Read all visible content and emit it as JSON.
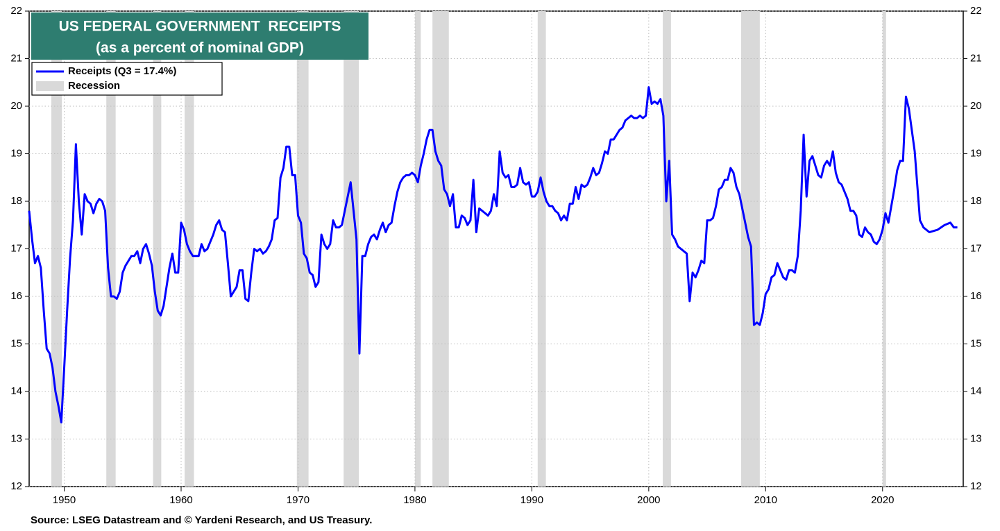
{
  "chart_data": {
    "type": "line",
    "title": "US FEDERAL GOVERNMENT  RECEIPTS",
    "subtitle": "(as a percent of nominal GDP)",
    "source": "Source: LSEG Datastream and © Yardeni Research, and US Treasury.",
    "xlim": [
      1947.0,
      2026.9
    ],
    "xticks": [
      1950,
      1960,
      1970,
      1980,
      1990,
      2000,
      2010,
      2020
    ],
    "ylim": [
      12,
      22
    ],
    "yticks": [
      12,
      13,
      14,
      15,
      16,
      17,
      18,
      19,
      20,
      21,
      22
    ],
    "y2lim": [
      12,
      22
    ],
    "y2ticks": [
      12,
      13,
      14,
      15,
      16,
      17,
      18,
      19,
      20,
      21,
      22
    ],
    "grid": true,
    "legend_position": "upper left",
    "recession_label": "Recession",
    "recession_color": "#d9d9d9",
    "recessions": [
      [
        1948.9,
        1949.8
      ],
      [
        1953.6,
        1954.4
      ],
      [
        1957.6,
        1958.3
      ],
      [
        1960.3,
        1961.1
      ],
      [
        1969.9,
        1970.9
      ],
      [
        1973.9,
        1975.2
      ],
      [
        1980.0,
        1980.5
      ],
      [
        1981.5,
        1982.9
      ],
      [
        1990.5,
        1991.2
      ],
      [
        2001.2,
        2001.9
      ],
      [
        2007.9,
        2009.5
      ],
      [
        2020.0,
        2020.3
      ]
    ],
    "x": [
      1947,
      1947.25,
      1947.5,
      1947.75,
      1948,
      1948.25,
      1948.5,
      1948.75,
      1949,
      1949.25,
      1949.5,
      1949.75,
      1950,
      1950.25,
      1950.5,
      1950.75,
      1951,
      1951.25,
      1951.5,
      1951.75,
      1952,
      1952.25,
      1952.5,
      1952.75,
      1953,
      1953.25,
      1953.5,
      1953.75,
      1954,
      1954.25,
      1954.5,
      1954.75,
      1955,
      1955.25,
      1955.5,
      1955.75,
      1956,
      1956.25,
      1956.5,
      1956.75,
      1957,
      1957.25,
      1957.5,
      1957.75,
      1958,
      1958.25,
      1958.5,
      1958.75,
      1959,
      1959.25,
      1959.5,
      1959.75,
      1960,
      1960.25,
      1960.5,
      1960.75,
      1961,
      1961.25,
      1961.5,
      1961.75,
      1962,
      1962.25,
      1962.5,
      1962.75,
      1963,
      1963.25,
      1963.5,
      1963.75,
      1964,
      1964.25,
      1964.5,
      1964.75,
      1965,
      1965.25,
      1965.5,
      1965.75,
      1966,
      1966.25,
      1966.5,
      1966.75,
      1967,
      1967.25,
      1967.5,
      1967.75,
      1968,
      1968.25,
      1968.5,
      1968.75,
      1969,
      1969.25,
      1969.5,
      1969.75,
      1970,
      1970.25,
      1970.5,
      1970.75,
      1971,
      1971.25,
      1971.5,
      1971.75,
      1972,
      1972.25,
      1972.5,
      1972.75,
      1973,
      1973.25,
      1973.5,
      1973.75,
      1974,
      1974.25,
      1974.5,
      1974.75,
      1975,
      1975.25,
      1975.5,
      1975.75,
      1976,
      1976.25,
      1976.5,
      1976.75,
      1977,
      1977.25,
      1977.5,
      1977.75,
      1978,
      1978.25,
      1978.5,
      1978.75,
      1979,
      1979.25,
      1979.5,
      1979.75,
      1980,
      1980.25,
      1980.5,
      1980.75,
      1981,
      1981.25,
      1981.5,
      1981.75,
      1982,
      1982.25,
      1982.5,
      1982.75,
      1983,
      1983.25,
      1983.5,
      1983.75,
      1984,
      1984.25,
      1984.5,
      1984.75,
      1985,
      1985.25,
      1985.5,
      1985.75,
      1986,
      1986.25,
      1986.5,
      1986.75,
      1987,
      1987.25,
      1987.5,
      1987.75,
      1988,
      1988.25,
      1988.5,
      1988.75,
      1989,
      1989.25,
      1989.5,
      1989.75,
      1990,
      1990.25,
      1990.5,
      1990.75,
      1991,
      1991.25,
      1991.5,
      1991.75,
      1992,
      1992.25,
      1992.5,
      1992.75,
      1993,
      1993.25,
      1993.5,
      1993.75,
      1994,
      1994.25,
      1994.5,
      1994.75,
      1995,
      1995.25,
      1995.5,
      1995.75,
      1996,
      1996.25,
      1996.5,
      1996.75,
      1997,
      1997.25,
      1997.5,
      1997.75,
      1998,
      1998.25,
      1998.5,
      1998.75,
      1999,
      1999.25,
      1999.5,
      1999.75,
      2000,
      2000.25,
      2000.5,
      2000.75,
      2001,
      2001.25,
      2001.5,
      2001.75,
      2002,
      2002.25,
      2002.5,
      2002.75,
      2003,
      2003.25,
      2003.5,
      2003.75,
      2004,
      2004.25,
      2004.5,
      2004.75,
      2005,
      2005.25,
      2005.5,
      2005.75,
      2006,
      2006.25,
      2006.5,
      2006.75,
      2007,
      2007.25,
      2007.5,
      2007.75,
      2008,
      2008.25,
      2008.5,
      2008.75,
      2009,
      2009.25,
      2009.5,
      2009.75,
      2010,
      2010.25,
      2010.5,
      2010.75,
      2011,
      2011.25,
      2011.5,
      2011.75,
      2012,
      2012.25,
      2012.5,
      2012.75,
      2013,
      2013.25,
      2013.5,
      2013.75,
      2014,
      2014.25,
      2014.5,
      2014.75,
      2015,
      2015.25,
      2015.5,
      2015.75,
      2016,
      2016.25,
      2016.5,
      2016.75,
      2017,
      2017.25,
      2017.5,
      2017.75,
      2018,
      2018.25,
      2018.5,
      2018.75,
      2019,
      2019.25,
      2019.5,
      2019.75,
      2020,
      2020.25,
      2020.5,
      2020.75,
      2021,
      2021.25,
      2021.5,
      2021.75,
      2022,
      2022.25,
      2022.5,
      2022.75,
      2023.2,
      2023.5,
      2024.0,
      2024.7,
      2025.3,
      2025.8,
      2026.1,
      2026.4
    ],
    "series": [
      {
        "name": "Receipts (Q3 = 17.4%)",
        "color": "#0000ff",
        "values": [
          17.8,
          17.2,
          16.7,
          16.85,
          16.6,
          15.7,
          14.9,
          14.8,
          14.5,
          14.0,
          13.7,
          13.35,
          14.5,
          15.7,
          16.8,
          17.6,
          19.2,
          18.0,
          17.3,
          18.15,
          18.0,
          17.95,
          17.75,
          17.95,
          18.05,
          18.0,
          17.8,
          16.6,
          16.0,
          16.0,
          15.95,
          16.1,
          16.5,
          16.65,
          16.75,
          16.85,
          16.85,
          16.95,
          16.7,
          17.0,
          17.1,
          16.9,
          16.65,
          16.1,
          15.7,
          15.6,
          15.8,
          16.2,
          16.6,
          16.9,
          16.5,
          16.5,
          17.55,
          17.4,
          17.1,
          16.95,
          16.85,
          16.85,
          16.85,
          17.1,
          16.95,
          17.0,
          17.15,
          17.3,
          17.5,
          17.6,
          17.4,
          17.35,
          16.7,
          16.0,
          16.1,
          16.2,
          16.55,
          16.55,
          15.95,
          15.9,
          16.5,
          17.0,
          16.95,
          17.0,
          16.9,
          16.95,
          17.05,
          17.2,
          17.6,
          17.65,
          18.5,
          18.7,
          19.15,
          19.15,
          18.55,
          18.55,
          17.7,
          17.55,
          16.9,
          16.8,
          16.5,
          16.45,
          16.2,
          16.3,
          17.3,
          17.1,
          17.0,
          17.1,
          17.6,
          17.45,
          17.45,
          17.5,
          17.8,
          18.1,
          18.4,
          17.8,
          17.2,
          14.8,
          16.85,
          16.85,
          17.1,
          17.25,
          17.3,
          17.2,
          17.4,
          17.55,
          17.35,
          17.5,
          17.55,
          17.9,
          18.2,
          18.4,
          18.5,
          18.55,
          18.55,
          18.6,
          18.55,
          18.4,
          18.75,
          19.0,
          19.3,
          19.5,
          19.5,
          19.05,
          18.85,
          18.75,
          18.25,
          18.15,
          17.9,
          18.15,
          17.45,
          17.45,
          17.7,
          17.65,
          17.5,
          17.6,
          18.45,
          17.35,
          17.85,
          17.8,
          17.75,
          17.7,
          17.8,
          18.15,
          17.9,
          19.05,
          18.6,
          18.5,
          18.55,
          18.3,
          18.3,
          18.35,
          18.7,
          18.4,
          18.35,
          18.4,
          18.1,
          18.1,
          18.2,
          18.5,
          18.2,
          18.0,
          17.9,
          17.9,
          17.8,
          17.75,
          17.6,
          17.7,
          17.6,
          17.95,
          17.95,
          18.3,
          18.05,
          18.35,
          18.3,
          18.35,
          18.5,
          18.7,
          18.55,
          18.6,
          18.8,
          19.05,
          19.0,
          19.3,
          19.3,
          19.4,
          19.5,
          19.55,
          19.7,
          19.75,
          19.8,
          19.75,
          19.75,
          19.8,
          19.75,
          19.8,
          20.4,
          20.05,
          20.1,
          20.05,
          20.15,
          19.8,
          18.0,
          18.85,
          17.3,
          17.2,
          17.05,
          17.0,
          16.95,
          16.9,
          15.9,
          16.5,
          16.4,
          16.55,
          16.75,
          16.7,
          17.6,
          17.6,
          17.65,
          17.9,
          18.25,
          18.3,
          18.45,
          18.45,
          18.7,
          18.6,
          18.3,
          18.15,
          17.85,
          17.55,
          17.25,
          17.05,
          15.4,
          15.45,
          15.4,
          15.65,
          16.05,
          16.15,
          16.4,
          16.45,
          16.7,
          16.55,
          16.4,
          16.35,
          16.55,
          16.55,
          16.5,
          16.85,
          17.8,
          19.4,
          18.1,
          18.85,
          18.95,
          18.75,
          18.55,
          18.5,
          18.75,
          18.85,
          18.75,
          19.05,
          18.6,
          18.4,
          18.35,
          18.2,
          18.05,
          17.8,
          17.8,
          17.7,
          17.3,
          17.25,
          17.45,
          17.35,
          17.3,
          17.15,
          17.1,
          17.2,
          17.4,
          17.75,
          17.55,
          17.9,
          18.25,
          18.65,
          18.85,
          18.85,
          20.2,
          19.95,
          19.5,
          19.05,
          17.6,
          17.45,
          17.35,
          17.4,
          17.5,
          17.55,
          17.45,
          17.45
        ]
      }
    ]
  }
}
